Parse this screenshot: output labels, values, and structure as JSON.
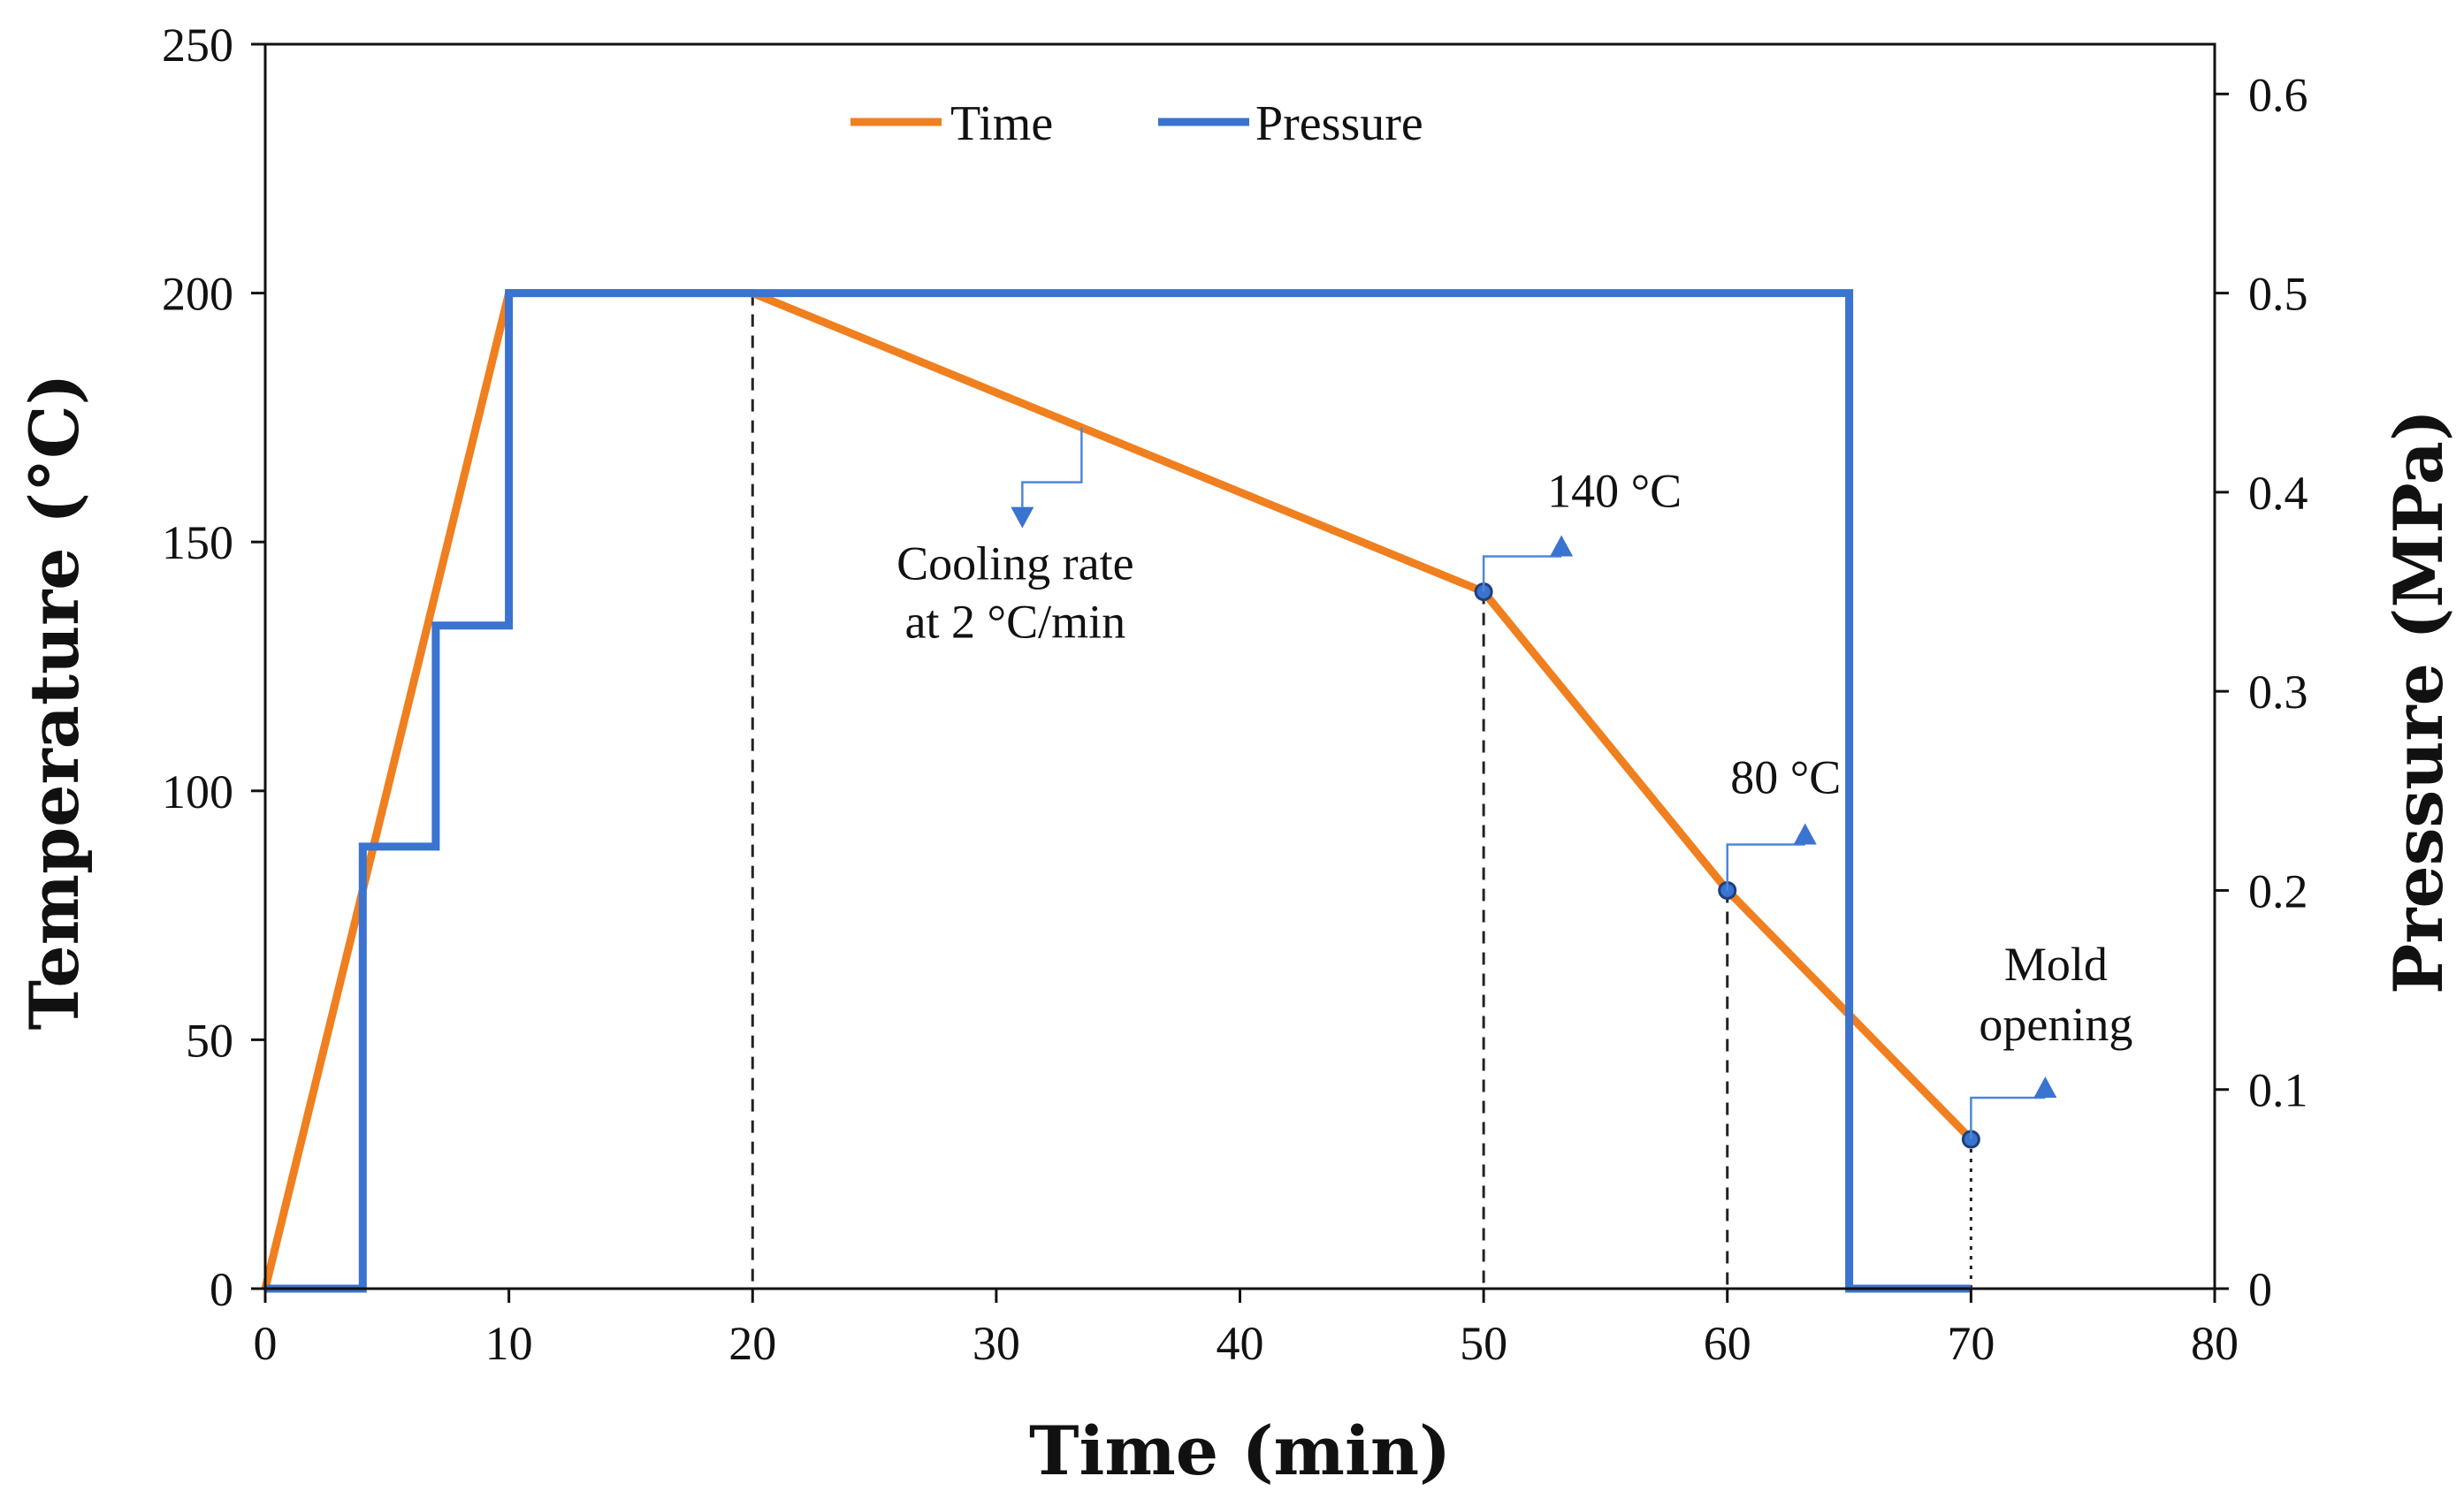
{
  "chart_data": {
    "type": "line",
    "title": "",
    "xlabel": "Time (min)",
    "ylabel": "Temperature (°C)",
    "y2label": "Pressure (MPa)",
    "xlim": [
      0,
      80
    ],
    "ylim": [
      0,
      250
    ],
    "y2lim": [
      0,
      0.625
    ],
    "x_ticks": [
      0,
      10,
      20,
      30,
      40,
      50,
      60,
      70,
      80
    ],
    "y_ticks": [
      0,
      50,
      100,
      150,
      200,
      250
    ],
    "y2_ticks": [
      0,
      0.1,
      0.2,
      0.3,
      0.4,
      0.5,
      0.6
    ],
    "x_tick_labels": [
      "0",
      "10",
      "20",
      "30",
      "40",
      "50",
      "60",
      "70",
      "80"
    ],
    "y_tick_labels": [
      "0",
      "50",
      "100",
      "150",
      "200",
      "250"
    ],
    "y2_tick_labels": [
      "0",
      "0.1",
      "0.2",
      "0.3",
      "0.4",
      "0.5",
      "0.6"
    ],
    "grid": false,
    "legend_position": "top-center",
    "series": [
      {
        "name": "Time",
        "axis": "left",
        "color": "#f07f1f",
        "x": [
          0,
          10,
          20,
          50,
          60,
          70
        ],
        "y": [
          0,
          200,
          200,
          140,
          80,
          30
        ]
      },
      {
        "name": "Pressure",
        "axis": "right",
        "color": "#3a73d0",
        "step": true,
        "x": [
          0,
          4,
          4,
          7,
          7,
          10,
          10,
          65,
          65,
          70
        ],
        "y": [
          0,
          0,
          0.222,
          0.222,
          0.333,
          0.333,
          0.5,
          0.5,
          0,
          0
        ]
      }
    ],
    "markers": [
      {
        "x": 50,
        "y": 140
      },
      {
        "x": 60,
        "y": 80
      },
      {
        "x": 70,
        "y": 30
      }
    ],
    "reference_lines": [
      {
        "x": 20,
        "y": 200,
        "style": "dashed"
      },
      {
        "x": 50,
        "y": 140,
        "style": "dashed"
      },
      {
        "x": 60,
        "y": 80,
        "style": "dashed"
      },
      {
        "x": 70,
        "y": 30,
        "style": "dotted"
      }
    ],
    "annotations": [
      {
        "id": "cooling",
        "lines": [
          "Cooling rate",
          "at 2 °C/min"
        ],
        "anchor_x": 33.5,
        "anchor_y": 173
      },
      {
        "id": "t140",
        "lines": [
          "140 °C"
        ],
        "anchor_x": 50,
        "anchor_y": 140
      },
      {
        "id": "t80",
        "lines": [
          "80 °C"
        ],
        "anchor_x": 60,
        "anchor_y": 80
      },
      {
        "id": "mold",
        "lines": [
          "Mold",
          "opening"
        ],
        "anchor_x": 70,
        "anchor_y": 30
      }
    ]
  }
}
